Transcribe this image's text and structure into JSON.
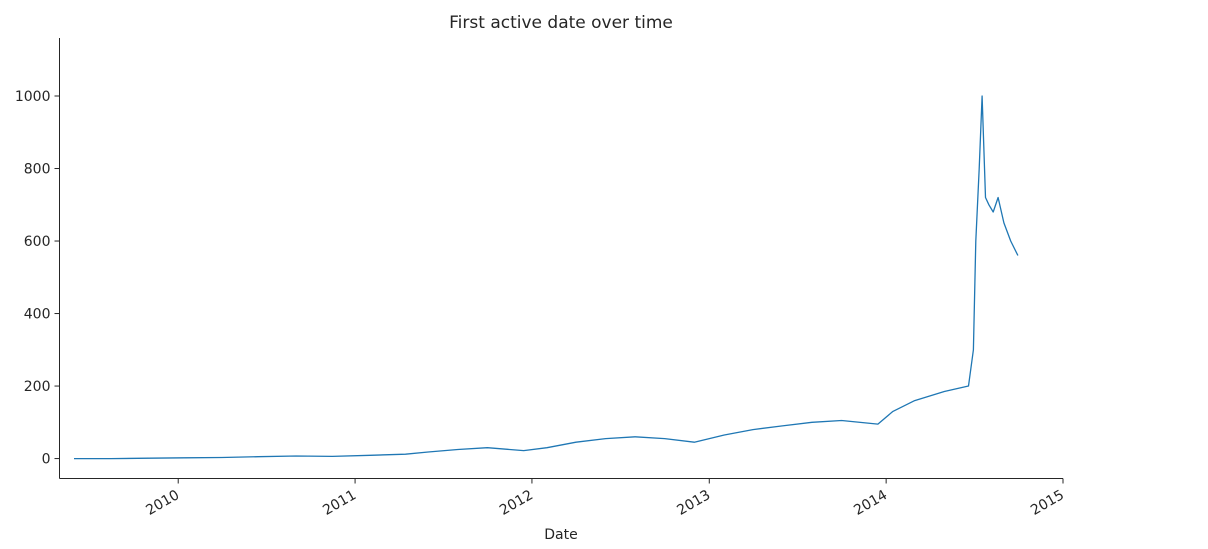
{
  "chart_data": {
    "type": "line",
    "title": "First active date over time",
    "xlabel": "Date",
    "ylabel": "",
    "x_axis_type": "date",
    "xlim": [
      "2009-05-01",
      "2015-01-01"
    ],
    "ylim": [
      -55,
      1160
    ],
    "x_ticks": [
      "2010",
      "2011",
      "2012",
      "2013",
      "2014",
      "2015"
    ],
    "y_ticks": [
      0,
      200,
      400,
      600,
      800,
      1000
    ],
    "grid": false,
    "legend": "none",
    "colors": {
      "line": "#1f77b4",
      "axis": "#262626",
      "text": "#262626"
    },
    "series": [
      {
        "x": [
          "2009-05-31",
          "2009-08-15",
          "2009-11-01",
          "2010-01-15",
          "2010-04-01",
          "2010-06-15",
          "2010-09-01",
          "2010-11-15",
          "2011-02-01",
          "2011-04-15",
          "2011-06-01",
          "2011-08-01",
          "2011-10-01",
          "2011-12-15",
          "2012-02-01",
          "2012-04-01",
          "2012-06-01",
          "2012-08-01",
          "2012-10-01",
          "2012-12-01",
          "2013-02-01",
          "2013-04-01",
          "2013-06-01",
          "2013-08-01",
          "2013-10-01",
          "2013-12-15",
          "2014-01-15",
          "2014-03-01",
          "2014-05-01",
          "2014-06-20",
          "2014-06-30",
          "2014-07-05",
          "2014-07-12",
          "2014-07-18",
          "2014-07-25",
          "2014-08-01",
          "2014-08-10",
          "2014-08-20",
          "2014-09-01",
          "2014-09-15",
          "2014-09-30"
        ],
        "y": [
          0,
          0,
          1,
          2,
          3,
          5,
          7,
          6,
          9,
          12,
          18,
          25,
          30,
          22,
          30,
          45,
          55,
          60,
          55,
          45,
          65,
          80,
          90,
          100,
          105,
          95,
          130,
          160,
          185,
          200,
          300,
          600,
          800,
          1000,
          720,
          700,
          680,
          720,
          650,
          600,
          560
        ]
      }
    ]
  }
}
